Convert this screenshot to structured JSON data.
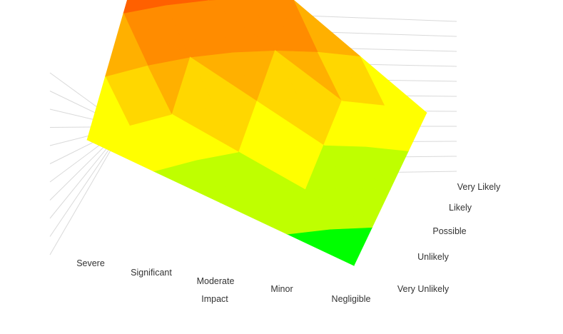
{
  "chart_data": {
    "type": "surface",
    "title": "",
    "xlabel": "Impact",
    "ylabel": "",
    "x_categories": [
      "Severe",
      "Significant",
      "Moderate",
      "Minor",
      "Negligible"
    ],
    "y_categories": [
      "Very Unlikely",
      "Unlikely",
      "Possible",
      "Likely",
      "Very Likely"
    ],
    "z_values": [
      [
        5,
        4,
        3,
        2,
        1
      ],
      [
        10,
        8,
        6,
        4,
        2
      ],
      [
        15,
        12,
        9,
        6,
        3
      ],
      [
        20,
        16,
        12,
        8,
        4
      ],
      [
        25,
        20,
        15,
        10,
        5
      ]
    ],
    "zlim": [
      0,
      25
    ],
    "grid": true,
    "legend": "none",
    "colors": [
      "#00ff00",
      "#bfff00",
      "#ffff00",
      "#ffd700",
      "#ffb000",
      "#ff8c00",
      "#ff6000",
      "#ff2a00",
      "#ff0000",
      "#b00000"
    ]
  }
}
